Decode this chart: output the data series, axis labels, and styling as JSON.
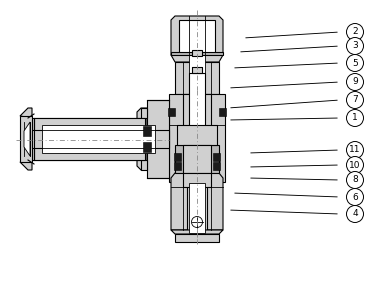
{
  "bg_color": "#ffffff",
  "lc": "#000000",
  "fl": "#d0d0d0",
  "fl2": "#b8b8b8",
  "white": "#ffffff",
  "black": "#1a1a1a",
  "cl_color": "#888888",
  "fig_width": 3.78,
  "fig_height": 2.84,
  "dpi": 100,
  "labels": [
    [
      2,
      348,
      32,
      243,
      38
    ],
    [
      3,
      348,
      46,
      238,
      52
    ],
    [
      5,
      348,
      63,
      232,
      68
    ],
    [
      9,
      348,
      82,
      228,
      88
    ],
    [
      7,
      348,
      100,
      228,
      108
    ],
    [
      1,
      348,
      118,
      228,
      120
    ],
    [
      11,
      348,
      150,
      248,
      153
    ],
    [
      10,
      348,
      165,
      248,
      167
    ],
    [
      8,
      348,
      180,
      248,
      178
    ],
    [
      6,
      348,
      197,
      232,
      193
    ],
    [
      4,
      348,
      214,
      228,
      210
    ]
  ]
}
